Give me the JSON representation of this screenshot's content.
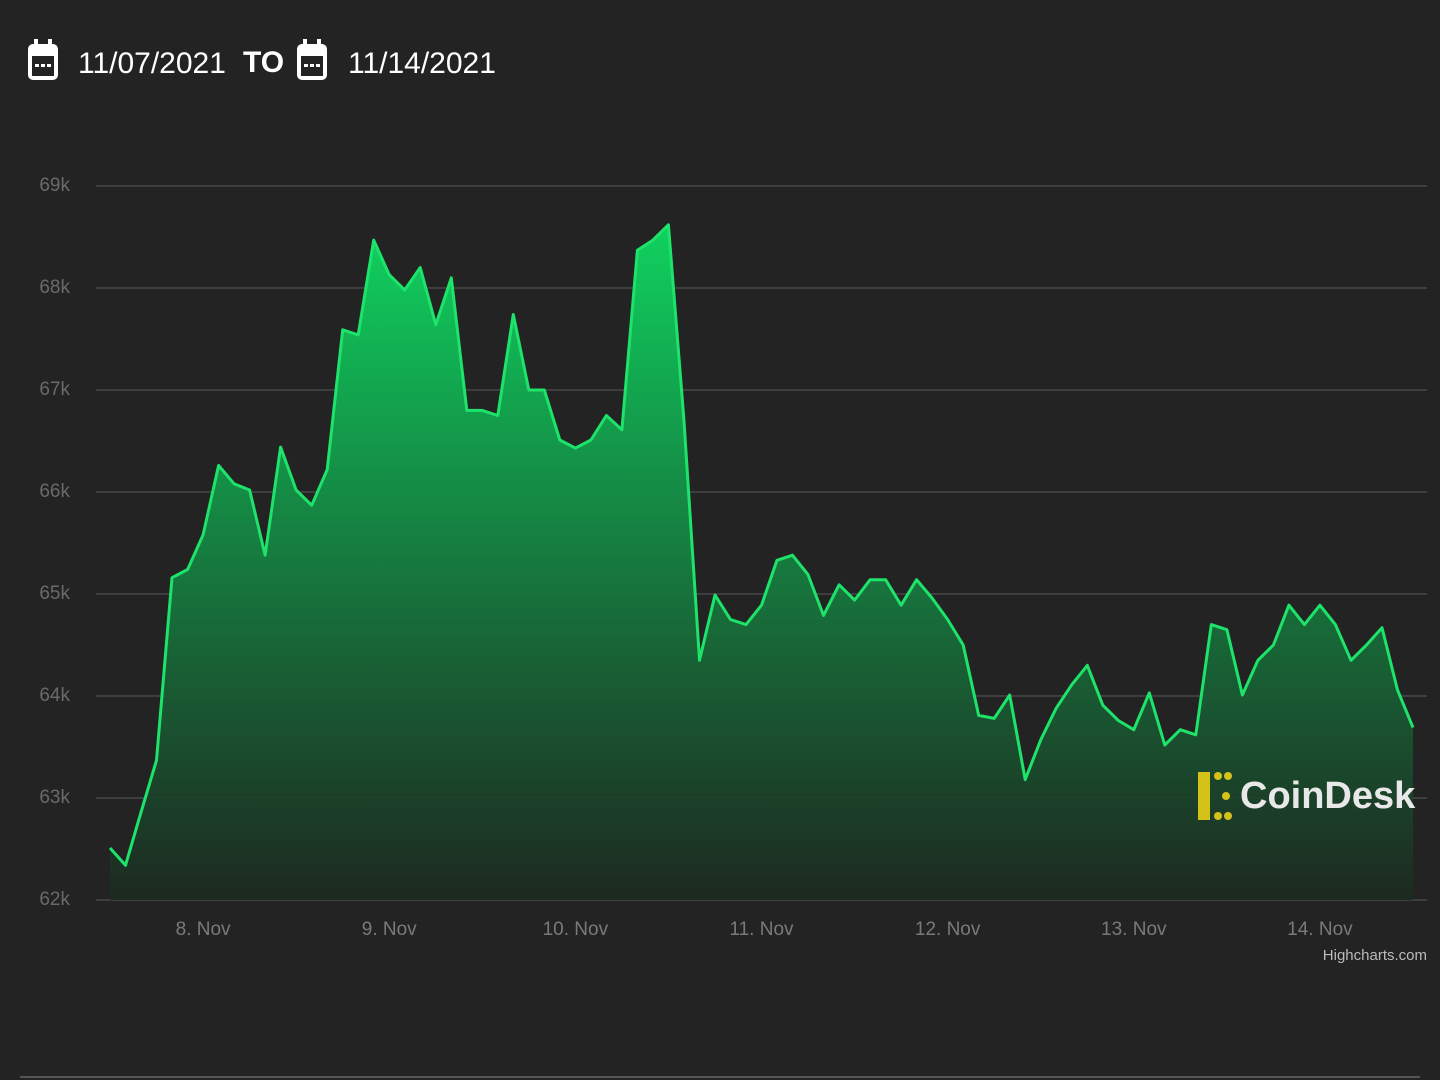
{
  "header": {
    "start_date": "11/07/2021",
    "to": "TO",
    "end_date": "11/14/2021"
  },
  "chart_data": {
    "type": "area",
    "categories": [
      null,
      null,
      null,
      null,
      null,
      null,
      "8. Nov",
      null,
      null,
      null,
      null,
      null,
      null,
      null,
      null,
      null,
      null,
      null,
      "9. Nov",
      null,
      null,
      null,
      null,
      null,
      null,
      null,
      null,
      null,
      null,
      null,
      "10. Nov",
      null,
      null,
      null,
      null,
      null,
      null,
      null,
      null,
      null,
      null,
      null,
      "11. Nov",
      null,
      null,
      null,
      null,
      null,
      null,
      null,
      null,
      null,
      null,
      null,
      "12. Nov",
      null,
      null,
      null,
      null,
      null,
      null,
      null,
      null,
      null,
      null,
      null,
      "13. Nov",
      null,
      null,
      null,
      null,
      null,
      null,
      null,
      null,
      null,
      null,
      null,
      "14. Nov",
      null,
      null,
      null,
      null,
      null,
      null
    ],
    "values": [
      62510,
      62340,
      62860,
      63370,
      65160,
      65240,
      65580,
      66260,
      66080,
      66020,
      65380,
      66440,
      66020,
      65870,
      66220,
      67590,
      67540,
      68470,
      68130,
      67980,
      68200,
      67640,
      68100,
      66800,
      66800,
      66750,
      67740,
      67000,
      67000,
      66510,
      66430,
      66510,
      66750,
      66610,
      68370,
      68470,
      68620,
      66710,
      64350,
      64990,
      64750,
      64700,
      64890,
      65330,
      65380,
      65190,
      64790,
      65090,
      64940,
      65140,
      65140,
      64890,
      65140,
      64960,
      64750,
      64500,
      63810,
      63780,
      64010,
      63180,
      63570,
      63880,
      64110,
      64300,
      63910,
      63760,
      63670,
      64030,
      63520,
      63670,
      63620,
      64700,
      64650,
      64010,
      64350,
      64500,
      64890,
      64700,
      64890,
      64700,
      64350,
      64500,
      64670,
      64060,
      63690
    ],
    "color": "#1ee36a",
    "ylim": [
      62000,
      69000
    ],
    "yticks": [
      {
        "value": 62000,
        "label": "62k"
      },
      {
        "value": 63000,
        "label": "63k"
      },
      {
        "value": 64000,
        "label": "64k"
      },
      {
        "value": 65000,
        "label": "65k"
      },
      {
        "value": 66000,
        "label": "66k"
      },
      {
        "value": 67000,
        "label": "67k"
      },
      {
        "value": 68000,
        "label": "68k"
      },
      {
        "value": 69000,
        "label": "69k"
      }
    ],
    "grid": true,
    "watermark": "CoinDesk",
    "credit": "Highcharts.com"
  }
}
